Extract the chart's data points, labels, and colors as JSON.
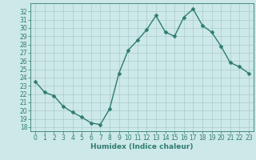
{
  "x": [
    0,
    1,
    2,
    3,
    4,
    5,
    6,
    7,
    8,
    9,
    10,
    11,
    12,
    13,
    14,
    15,
    16,
    17,
    18,
    19,
    20,
    21,
    22,
    23
  ],
  "y": [
    23.5,
    22.2,
    21.8,
    20.5,
    19.8,
    19.2,
    18.5,
    18.3,
    20.2,
    24.5,
    27.3,
    28.5,
    29.8,
    31.5,
    29.5,
    29.0,
    31.3,
    32.3,
    30.3,
    29.5,
    27.8,
    25.8,
    25.3,
    24.5
  ],
  "line_color": "#2e7d6e",
  "marker": "D",
  "marker_size": 2.5,
  "bg_color": "#cde8e8",
  "grid_color": "#aacccc",
  "xlabel": "Humidex (Indice chaleur)",
  "ylim": [
    17.5,
    33.0
  ],
  "xlim": [
    -0.5,
    23.5
  ],
  "yticks": [
    18,
    19,
    20,
    21,
    22,
    23,
    24,
    25,
    26,
    27,
    28,
    29,
    30,
    31,
    32
  ],
  "xticks": [
    0,
    1,
    2,
    3,
    4,
    5,
    6,
    7,
    8,
    9,
    10,
    11,
    12,
    13,
    14,
    15,
    16,
    17,
    18,
    19,
    20,
    21,
    22,
    23
  ],
  "tick_label_fontsize": 5.5,
  "xlabel_fontsize": 6.5,
  "line_width": 1.0
}
